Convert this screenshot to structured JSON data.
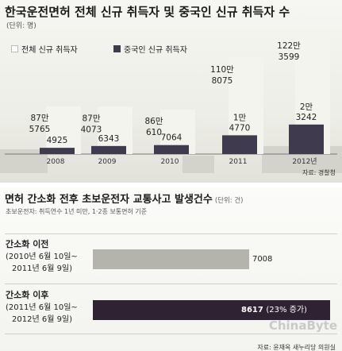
{
  "colors": {
    "total": "#f4f4ef",
    "china": "#403a4f",
    "before": "#b4b4ac",
    "after": "#2e2233"
  },
  "chart_data": [
    {
      "type": "bar",
      "title": "한국운전면허 전체 신규 취득자 및 중국인 신규 취득자 수",
      "unit": "(단위: 명)",
      "categories": [
        "2008",
        "2009",
        "2010",
        "2011",
        "2012년"
      ],
      "series": [
        {
          "name": "전체 신규 취득자",
          "values": [
            875765,
            874073,
            860610,
            1108075,
            1223599
          ],
          "labels": [
            "87만\n5765",
            "87만\n4073",
            "86만\n610",
            "110만\n8075",
            "122만\n3599"
          ]
        },
        {
          "name": "중국인 신규 취득자",
          "values": [
            4925,
            6343,
            7064,
            14770,
            23242
          ],
          "labels": [
            "4925",
            "6343",
            "7064",
            "1만\n4770",
            "2만\n3242"
          ]
        }
      ],
      "source": "자료: 경찰청"
    },
    {
      "type": "bar",
      "title": "면허 간소화 전후 초보운전자 교통사고 발생건수",
      "unit": "(단위: 건)",
      "note": "초보운전자: 취득연수 1년 미만, 1·2종 보통면허 기준",
      "categories": [
        {
          "name": "간소화 이전",
          "period1": "(2010년 6월 10일~",
          "period2": "2011년 6월 9일)"
        },
        {
          "name": "간소화 이후",
          "period1": "(2011년 6월 10일~",
          "period2": "2012년 6월 9일)"
        }
      ],
      "values": [
        7008,
        8617
      ],
      "labels": [
        "7008",
        "8617"
      ],
      "change": "(23% 증가)",
      "source": "자료: 윤재옥 새누리당 의원실"
    }
  ],
  "watermark": "ChinaByte"
}
